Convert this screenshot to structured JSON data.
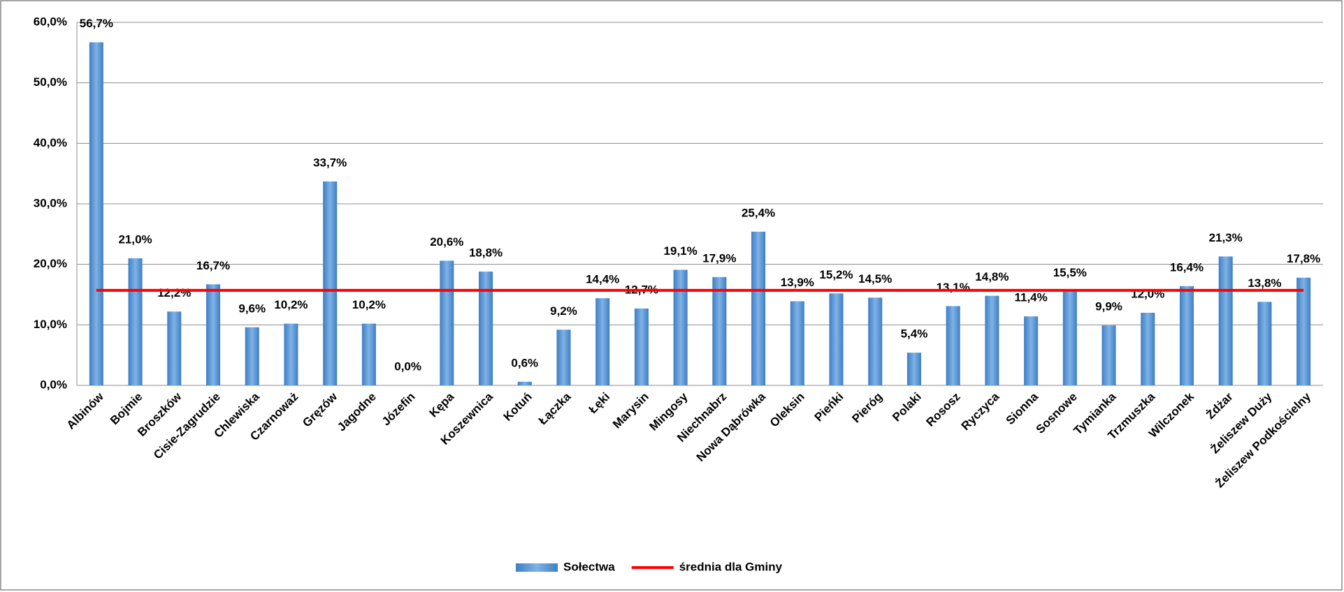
{
  "chart_data": {
    "type": "bar",
    "categories": [
      "Albinów",
      "Bojmie",
      "Broszków",
      "Cisie-Zagrudzie",
      "Chlewiska",
      "Czarnoważ",
      "Gręzów",
      "Jagodne",
      "Józefin",
      "Kępa",
      "Koszewnica",
      "Kotuń",
      "Łączka",
      "Łęki",
      "Marysin",
      "Mingosy",
      "Niechnabrz",
      "Nowa Dąbrówka",
      "Oleksin",
      "Pieńki",
      "Pieróg",
      "Polaki",
      "Rososz",
      "Ryczyca",
      "Sionna",
      "Sosnowe",
      "Tymianka",
      "Trzmuszka",
      "Wilczonek",
      "Żdżar",
      "Żeliszew Duży",
      "Żeliszew Podkościelny"
    ],
    "series": [
      {
        "name": "Sołectwa",
        "color": "#5b9bd5",
        "values": [
          56.7,
          21.0,
          12.2,
          16.7,
          9.6,
          10.2,
          33.7,
          10.2,
          0.0,
          20.6,
          18.8,
          0.6,
          9.2,
          14.4,
          12.7,
          19.1,
          17.9,
          25.4,
          13.9,
          15.2,
          14.5,
          5.4,
          13.1,
          14.8,
          11.4,
          15.5,
          9.9,
          12.0,
          16.4,
          21.3,
          13.8,
          17.8
        ],
        "value_labels": [
          "56,7%",
          "21,0%",
          "12,2%",
          "16,7%",
          "9,6%",
          "10,2%",
          "33,7%",
          "10,2%",
          "0,0%",
          "20,6%",
          "18,8%",
          "0,6%",
          "9,2%",
          "14,4%",
          "12,7%",
          "19,1%",
          "17,9%",
          "25,4%",
          "13,9%",
          "15,2%",
          "14,5%",
          "5,4%",
          "13,1%",
          "14,8%",
          "11,4%",
          "15,5%",
          "9,9%",
          "12,0%",
          "16,4%",
          "21,3%",
          "13,8%",
          "17,8%"
        ]
      },
      {
        "name": "średnia dla Gminy",
        "color": "#ff0000",
        "type": "line",
        "values": [
          15.7,
          15.7,
          15.7,
          15.7,
          15.7,
          15.7,
          15.7,
          15.7,
          15.7,
          15.7,
          15.7,
          15.7,
          15.7,
          15.7,
          15.7,
          15.7,
          15.7,
          15.7,
          15.7,
          15.7,
          15.7,
          15.7,
          15.7,
          15.7,
          15.7,
          15.7,
          15.7,
          15.7,
          15.7,
          15.7,
          15.7,
          15.7
        ]
      }
    ],
    "ylim": [
      0,
      60
    ],
    "yticks": [
      {
        "value": 0,
        "label": "0,0%"
      },
      {
        "value": 10,
        "label": "10,0%"
      },
      {
        "value": 20,
        "label": "20,0%"
      },
      {
        "value": 30,
        "label": "30,0%"
      },
      {
        "value": 40,
        "label": "40,0%"
      },
      {
        "value": 50,
        "label": "50,0%"
      },
      {
        "value": 60,
        "label": "60,0%"
      }
    ],
    "grid": true,
    "legend": "bottom"
  }
}
